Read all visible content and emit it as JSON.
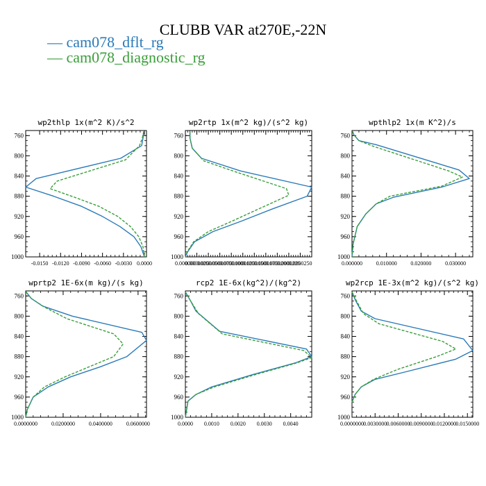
{
  "title": "CLUBB VAR at270E,-22N",
  "legend": [
    {
      "label": "— cam078_dflt_rg",
      "color": "#2a7ab8"
    },
    {
      "label": "— cam078_diagnostic_rg",
      "color": "#3a9e3a"
    }
  ],
  "chart_data": [
    {
      "type": "line",
      "title": "wp2thlp  1x(m^2 K)/s^2",
      "y_ticks": [
        760,
        800,
        840,
        880,
        920,
        960,
        1000
      ],
      "ylim": [
        1000,
        750
      ],
      "xlim": [
        -0.017,
        0.0003
      ],
      "x_ticks": [
        -0.015,
        -0.012,
        -0.009,
        -0.006,
        -0.003,
        0.0
      ],
      "x_tick_labels": [
        "-0.0150",
        "-0.0120",
        "-0.0090",
        "-0.0060",
        "-0.0030",
        "0.0000"
      ],
      "series": [
        {
          "name": "cam078_dflt_rg",
          "color": "#2a7ab8",
          "x": [
            -0.0001,
            -0.0002,
            -0.0004,
            -0.0034,
            -0.0155,
            -0.017,
            -0.013,
            -0.009,
            -0.006,
            -0.0035,
            -0.0015,
            -0.0005,
            0.0
          ],
          "y": [
            752,
            765,
            780,
            805,
            845,
            862,
            880,
            900,
            920,
            940,
            960,
            980,
            1000
          ]
        },
        {
          "name": "cam078_diagnostic_rg",
          "color": "#3a9e3a",
          "x": [
            -0.0001,
            -0.0003,
            -0.0007,
            -0.0027,
            -0.0125,
            -0.0135,
            -0.01,
            -0.0065,
            -0.0038,
            -0.002,
            -0.0008,
            -0.0002,
            0.0
          ],
          "y": [
            752,
            765,
            780,
            808,
            850,
            865,
            882,
            900,
            920,
            940,
            960,
            980,
            1000
          ]
        }
      ]
    },
    {
      "type": "line",
      "title": "wp2rtp  1x(m^2 kg)/(s^2 kg)",
      "y_ticks": [
        760,
        800,
        840,
        880,
        920,
        960,
        1000
      ],
      "ylim": [
        1000,
        750
      ],
      "xlim": [
        0.0,
        2.75e-05
      ],
      "x_ticks": [
        0.0,
        2.5e-06,
        5e-06,
        7.5e-06,
        1e-05,
        1.25e-05,
        1.5e-05,
        1.75e-05,
        2e-05,
        2.25e-05,
        2.5e-05
      ],
      "x_tick_labels": [
        "0.000000",
        "0.0000025",
        "0.0000050",
        "0.0000075",
        "0.0000100",
        "0.0000125",
        "0.0000150",
        "0.0000175",
        "0.0000200",
        "0.0000225",
        "0.0000250"
      ],
      "series": [
        {
          "name": "cam078_dflt_rg",
          "color": "#2a7ab8",
          "x": [
            1e-06,
            1e-06,
            1.5e-06,
            3.5e-06,
            1.2e-05,
            2.75e-05,
            2.65e-05,
            1.9e-05,
            1.2e-05,
            6e-06,
            2e-06,
            5e-07,
            0.0
          ],
          "y": [
            752,
            765,
            785,
            805,
            830,
            862,
            880,
            905,
            930,
            950,
            970,
            990,
            1000
          ]
        },
        {
          "name": "cam078_diagnostic_rg",
          "color": "#3a9e3a",
          "x": [
            1e-06,
            1e-06,
            1.5e-06,
            4e-06,
            1.1e-05,
            2.2e-05,
            2.25e-05,
            1.6e-05,
            1e-05,
            5e-06,
            1.8e-06,
            4e-07,
            0.0
          ],
          "y": [
            752,
            765,
            785,
            810,
            832,
            865,
            878,
            905,
            930,
            950,
            970,
            990,
            1000
          ]
        }
      ]
    },
    {
      "type": "line",
      "title": "wpthlp2  1x(m K^2)/s",
      "y_ticks": [
        760,
        800,
        840,
        880,
        920,
        960,
        1000
      ],
      "ylim": [
        1000,
        750
      ],
      "xlim": [
        0.0,
        0.035
      ],
      "x_ticks": [
        0.0,
        0.01,
        0.02,
        0.03
      ],
      "x_tick_labels": [
        "0.000000",
        "0.010000",
        "0.020000",
        "0.030000"
      ],
      "series": [
        {
          "name": "cam078_dflt_rg",
          "color": "#2a7ab8",
          "x": [
            0.0002,
            0.0005,
            0.002,
            0.007,
            0.031,
            0.034,
            0.026,
            0.012,
            0.007,
            0.004,
            0.0015,
            0.0003,
            0.0
          ],
          "y": [
            752,
            758,
            770,
            778,
            828,
            845,
            862,
            882,
            895,
            915,
            940,
            975,
            1000
          ]
        },
        {
          "name": "cam078_diagnostic_rg",
          "color": "#3a9e3a",
          "x": [
            0.0002,
            0.0005,
            0.002,
            0.0065,
            0.028,
            0.032,
            0.026,
            0.011,
            0.007,
            0.004,
            0.0015,
            0.0003,
            0.0
          ],
          "y": [
            752,
            758,
            770,
            782,
            830,
            842,
            860,
            880,
            895,
            915,
            940,
            975,
            1000
          ]
        }
      ]
    },
    {
      "type": "line",
      "title": "wprtp2  1E-6x(m kg)/(s kg)",
      "y_ticks": [
        760,
        800,
        840,
        880,
        920,
        960,
        1000
      ],
      "ylim": [
        1000,
        750
      ],
      "xlim": [
        0.0,
        0.0645
      ],
      "x_ticks": [
        0.0,
        0.02,
        0.04,
        0.06
      ],
      "x_tick_labels": [
        "0.0000000",
        "0.0200000",
        "0.0400000",
        "0.0600000"
      ],
      "series": [
        {
          "name": "cam078_dflt_rg",
          "color": "#2a7ab8",
          "x": [
            0.0002,
            0.003,
            0.009,
            0.025,
            0.062,
            0.0645,
            0.054,
            0.04,
            0.024,
            0.012,
            0.004,
            0.0008,
            0.0
          ],
          "y": [
            752,
            765,
            780,
            800,
            832,
            848,
            880,
            900,
            920,
            940,
            960,
            985,
            1000
          ]
        },
        {
          "name": "cam078_diagnostic_rg",
          "color": "#3a9e3a",
          "x": [
            0.0002,
            0.003,
            0.01,
            0.022,
            0.047,
            0.052,
            0.047,
            0.034,
            0.021,
            0.01,
            0.004,
            0.0008,
            0.0
          ],
          "y": [
            752,
            765,
            782,
            805,
            835,
            855,
            880,
            900,
            920,
            940,
            960,
            985,
            1000
          ]
        }
      ]
    },
    {
      "type": "line",
      "title": "rcp2  1E-6x(kg^2)/(kg^2)",
      "y_ticks": [
        760,
        800,
        840,
        880,
        920,
        960,
        1000
      ],
      "ylim": [
        1000,
        750
      ],
      "xlim": [
        0.0,
        0.0048
      ],
      "x_ticks": [
        0.0,
        0.001,
        0.002,
        0.003,
        0.004
      ],
      "x_tick_labels": [
        "0.0000",
        "0.0010",
        "0.0020",
        "0.0030",
        "0.0040"
      ],
      "series": [
        {
          "name": "cam078_dflt_rg",
          "color": "#2a7ab8",
          "x": [
            0.0,
            0.0002,
            0.0004,
            0.0013,
            0.0046,
            0.0048,
            0.0042,
            0.0026,
            0.001,
            0.0004,
            0.0001,
            0.0
          ],
          "y": [
            752,
            770,
            790,
            830,
            865,
            880,
            892,
            915,
            940,
            955,
            968,
            1000
          ]
        },
        {
          "name": "cam078_diagnostic_rg",
          "color": "#3a9e3a",
          "x": [
            0.0,
            0.0002,
            0.0005,
            0.0014,
            0.0045,
            0.0048,
            0.0042,
            0.0027,
            0.0011,
            0.0004,
            0.0001,
            0.0
          ],
          "y": [
            752,
            770,
            795,
            835,
            868,
            882,
            893,
            915,
            940,
            955,
            968,
            1000
          ]
        }
      ]
    },
    {
      "type": "line",
      "title": "wp2rcp  1E-3x(m^2 kg)/(s^2 kg)",
      "y_ticks": [
        760,
        800,
        840,
        880,
        920,
        960,
        1000
      ],
      "ylim": [
        1000,
        750
      ],
      "xlim": [
        0.0,
        0.0157
      ],
      "x_ticks": [
        0.0,
        0.003,
        0.006,
        0.009,
        0.012,
        0.015
      ],
      "x_tick_labels": [
        "0.0000000",
        "0.0030000",
        "0.0060000",
        "0.0090000",
        "0.0120000",
        "0.0150000"
      ],
      "series": [
        {
          "name": "cam078_dflt_rg",
          "color": "#2a7ab8",
          "x": [
            0.0,
            0.0005,
            0.0012,
            0.003,
            0.0145,
            0.0157,
            0.0135,
            0.007,
            0.003,
            0.0012,
            0.0004,
            0.0
          ],
          "y": [
            752,
            770,
            790,
            805,
            845,
            868,
            885,
            910,
            925,
            940,
            955,
            970
          ]
        },
        {
          "name": "cam078_diagnostic_rg",
          "color": "#3a9e3a",
          "x": [
            0.0,
            0.0006,
            0.0015,
            0.0035,
            0.0118,
            0.0135,
            0.011,
            0.006,
            0.0028,
            0.0012,
            0.0004,
            0.0
          ],
          "y": [
            752,
            770,
            795,
            815,
            850,
            865,
            880,
            905,
            925,
            940,
            955,
            970
          ]
        }
      ]
    }
  ]
}
